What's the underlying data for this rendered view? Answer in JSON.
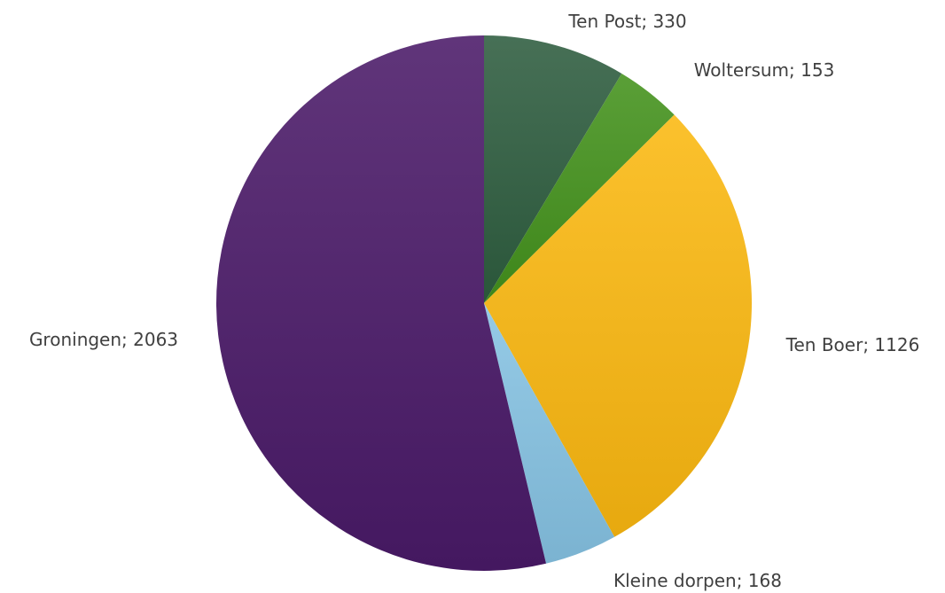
{
  "chart_data": {
    "type": "pie",
    "title": "",
    "start_angle_deg": 0,
    "direction": "clockwise",
    "slices": [
      {
        "label": "Ten Post",
        "value": 330,
        "display": "Ten Post; 330",
        "color": "#2e5d3f"
      },
      {
        "label": "Woltersum",
        "value": 153,
        "display": "Woltersum; 153",
        "color": "#43921c"
      },
      {
        "label": "Ten Boer",
        "value": 1126,
        "display": "Ten Boer; 1126",
        "color": "#fbb810"
      },
      {
        "label": "Kleine dorpen",
        "value": 168,
        "display": "Kleine dorpen; 168",
        "color": "#86c3e3"
      },
      {
        "label": "Groningen",
        "value": 2063,
        "display": "Groningen; 2063",
        "color": "#4a1a68"
      }
    ],
    "legend": "none",
    "grid": false
  }
}
